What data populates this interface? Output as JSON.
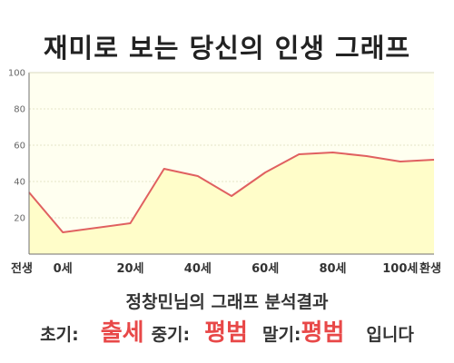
{
  "header": {
    "title": "재미로 보는 당신의 인생 그래프"
  },
  "chart_data": {
    "type": "area",
    "title": "재미로 보는 당신의 인생 그래프",
    "x_labels": [
      "전생",
      "0세",
      "20세",
      "40세",
      "60세",
      "80세",
      "100세",
      "환생"
    ],
    "y_ticks": [
      20,
      40,
      60,
      80,
      100
    ],
    "ylim": [
      0,
      100
    ],
    "grid": true,
    "legend": "none",
    "series": [
      {
        "points": [
          {
            "x": "전생",
            "y": 34
          },
          {
            "x": "0세",
            "y": 12
          },
          {
            "x": "20세",
            "y": 17
          },
          {
            "x": "30세",
            "y": 47
          },
          {
            "x": "40세",
            "y": 43
          },
          {
            "x": "50세",
            "y": 32
          },
          {
            "x": "60세",
            "y": 45
          },
          {
            "x": "70세",
            "y": 55
          },
          {
            "x": "80세",
            "y": 56
          },
          {
            "x": "90세",
            "y": 54
          },
          {
            "x": "100세",
            "y": 51
          },
          {
            "x": "환생",
            "y": 52
          }
        ]
      }
    ],
    "colors": {
      "line": "#e06060",
      "fill": "#fffdc9",
      "plot_bg": "#fffff0",
      "grid": "#e6e6c8",
      "axis": "#707070"
    }
  },
  "summary": {
    "heading": "정창민님의 그래프 분석결과",
    "early_label": "초기:",
    "early_value": "출세",
    "middle_label": "중기:",
    "middle_value": "평범",
    "late_label": "말기:",
    "late_value": "평범",
    "ending": "입니다"
  }
}
